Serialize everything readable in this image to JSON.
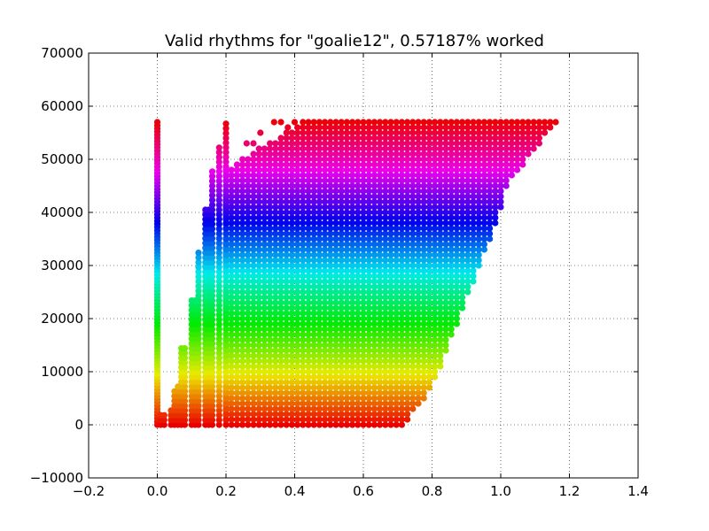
{
  "chart_data": {
    "type": "scatter",
    "title": "Valid rhythms for \"goalie12\", 0.57187% worked",
    "xlabel": "",
    "ylabel": "",
    "xlim": [
      -0.2,
      1.4
    ],
    "ylim": [
      -10000,
      70000
    ],
    "x_ticks": [
      -0.2,
      0.0,
      0.2,
      0.4,
      0.6,
      0.8,
      1.0,
      1.2,
      1.4
    ],
    "x_tick_labels": [
      "−0.2",
      "0.0",
      "0.2",
      "0.4",
      "0.6",
      "0.8",
      "1.0",
      "1.2",
      "1.4"
    ],
    "y_ticks": [
      -10000,
      0,
      10000,
      20000,
      30000,
      40000,
      50000,
      60000,
      70000
    ],
    "y_tick_labels": [
      "−10000",
      "0",
      "10000",
      "20000",
      "30000",
      "40000",
      "50000",
      "60000",
      "70000"
    ],
    "grid": true,
    "grid_style": "dotted",
    "colormap": "hsv",
    "color_by": "y",
    "y_color_period": 57344,
    "point_color_hue_range": [
      0,
      360
    ],
    "y_range_of_points": [
      0,
      57344
    ],
    "series": [
      {
        "description_by_region": true,
        "regions": [
          {
            "x_min": 0.0,
            "x_max": 0.0,
            "y_min": 0,
            "y_max": 57344
          },
          {
            "x_min": 0.02,
            "x_max": 0.2,
            "y_min": 0,
            "y_max": 57344,
            "staircase_steps": [
              [
                0.02,
                0,
                2000
              ],
              [
                0.04,
                0,
                3000
              ],
              [
                0.06,
                0,
                8000
              ],
              [
                0.08,
                0,
                15000
              ],
              [
                0.1,
                0,
                24000
              ],
              [
                0.12,
                0,
                33000
              ],
              [
                0.14,
                0,
                41000
              ],
              [
                0.16,
                0,
                48000
              ],
              [
                0.18,
                0,
                53000
              ],
              [
                0.2,
                0,
                57344
              ]
            ]
          },
          {
            "x_min": 0.2,
            "x_max": 1.18,
            "y_min": 0,
            "y_max": 57344,
            "lower_boundary": [
              [
                0.2,
                0
              ],
              [
                0.3,
                0
              ],
              [
                0.7,
                0
              ]
            ],
            "upper_boundary": [
              [
                0.2,
                48000
              ],
              [
                0.32,
                53000
              ],
              [
                0.4,
                57000
              ],
              [
                0.6,
                57344
              ],
              [
                1.18,
                57344
              ]
            ],
            "right_boundary": [
              [
                0.6,
                0
              ],
              [
                0.8,
                10000
              ],
              [
                0.95,
                30000
              ],
              [
                1.0,
                40000
              ],
              [
                1.1,
                50000
              ],
              [
                1.18,
                57344
              ]
            ]
          }
        ]
      }
    ]
  }
}
